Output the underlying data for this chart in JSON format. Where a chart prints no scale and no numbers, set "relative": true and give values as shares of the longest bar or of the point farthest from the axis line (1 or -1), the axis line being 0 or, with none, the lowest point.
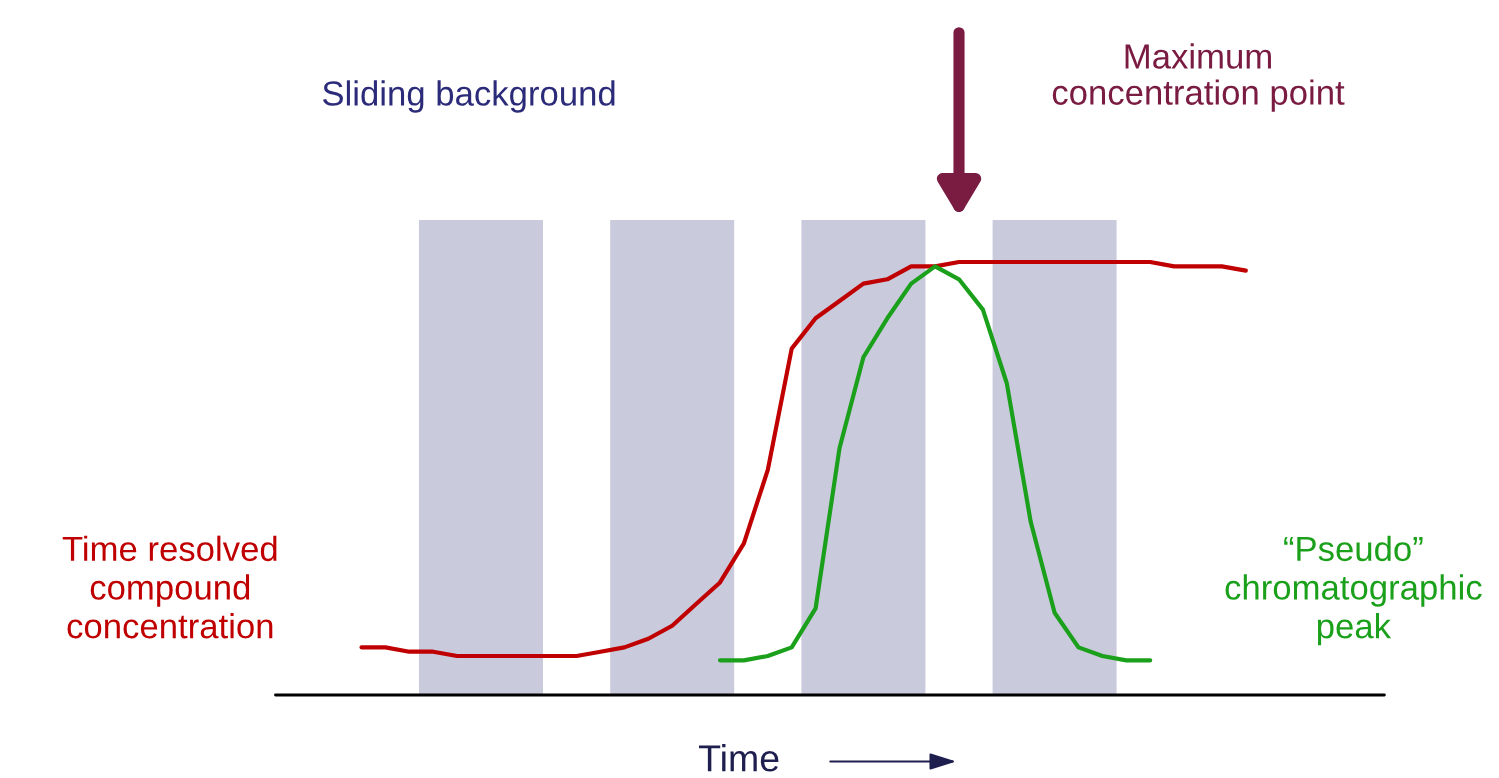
{
  "chart_data": {
    "type": "line",
    "relative": true,
    "xlabel": "Time",
    "categories": [
      null,
      null,
      null,
      null,
      null,
      null,
      null,
      null,
      null,
      null,
      null,
      null,
      null,
      null,
      null,
      null,
      null,
      null,
      null,
      null,
      null,
      null,
      null,
      null,
      null,
      null,
      null,
      null,
      null,
      null,
      null,
      null,
      null,
      null,
      null,
      null,
      null,
      null
    ],
    "annotations": [
      "Sliding background",
      "Maximum concentration point"
    ],
    "series": [
      {
        "name": "Time resolved\ncompound\nconcentration",
        "color": "#c00000",
        "values": [
          0.11,
          0.11,
          0.1,
          0.1,
          0.09,
          0.09,
          0.09,
          0.09,
          0.09,
          0.09,
          0.1,
          0.11,
          0.13,
          0.16,
          0.21,
          0.26,
          0.35,
          0.52,
          0.8,
          0.87,
          0.91,
          0.95,
          0.96,
          0.99,
          0.99,
          1,
          1,
          1,
          1,
          1,
          1,
          1,
          1,
          1,
          0.99,
          0.99,
          0.99,
          0.98
        ]
      },
      {
        "name": "“Pseudo”\nchromatographic\npeak",
        "color": "#1aa01a",
        "values": [
          null,
          null,
          null,
          null,
          null,
          null,
          null,
          null,
          null,
          null,
          null,
          null,
          null,
          null,
          null,
          0.08,
          0.08,
          0.09,
          0.11,
          0.2,
          0.57,
          0.78,
          0.87,
          0.95,
          0.99,
          0.96,
          0.89,
          0.72,
          0.4,
          0.19,
          0.11,
          0.09,
          0.08,
          0.08,
          null,
          null,
          null,
          null
        ]
      }
    ]
  }
}
